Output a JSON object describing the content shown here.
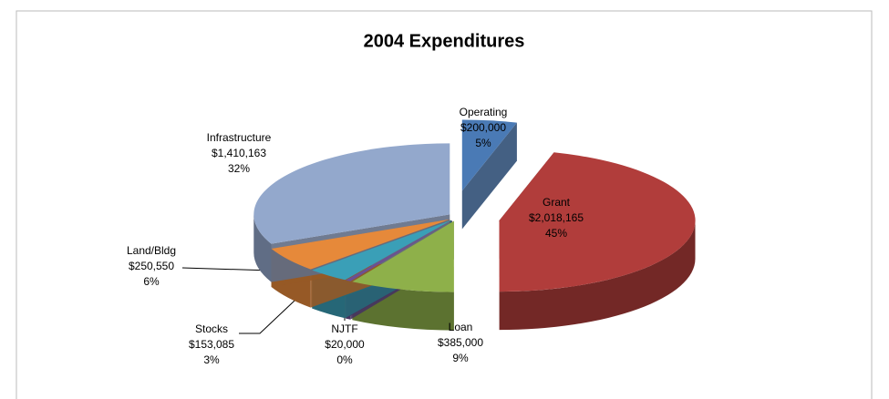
{
  "chart_data": {
    "type": "pie3d",
    "title": "2004 Expenditures",
    "categories": [
      "Operating",
      "Grant",
      "Loan",
      "NJTF",
      "Stocks",
      "Land/Bldg",
      "Infrastructure"
    ],
    "values": [
      200000,
      2018165,
      385000,
      20000,
      153085,
      250550,
      1410163
    ],
    "value_labels": [
      "$200,000",
      "$2,018,165",
      "$385,000",
      "$20,000",
      "$153,085",
      "$250,550",
      "$1,410,163"
    ],
    "percent_labels": [
      "5%",
      "45%",
      "9%",
      "0%",
      "3%",
      "6%",
      "32%"
    ],
    "colors": [
      "#4a7ab5",
      "#b13d3b",
      "#8eb04a",
      "#6b4f94",
      "#3a9fb7",
      "#e6893a",
      "#93a8cc"
    ]
  }
}
